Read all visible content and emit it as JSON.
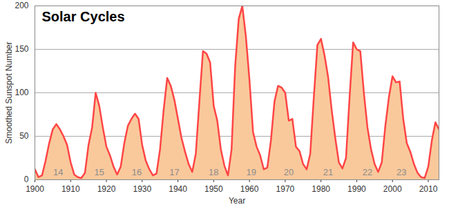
{
  "chart_data": {
    "type": "area",
    "title": "Solar Cycles",
    "x_label": "Year",
    "y_label": "Smoothed Sunspot Number",
    "x": [
      1900,
      1901,
      1902,
      1903,
      1904,
      1905,
      1906,
      1907,
      1908,
      1909,
      1910,
      1911,
      1912,
      1913,
      1914,
      1915,
      1916,
      1917,
      1918,
      1919,
      1920,
      1921,
      1922,
      1923,
      1924,
      1925,
      1926,
      1927,
      1928,
      1929,
      1930,
      1931,
      1932,
      1933,
      1934,
      1935,
      1936,
      1937,
      1938,
      1939,
      1940,
      1941,
      1942,
      1943,
      1944,
      1945,
      1946,
      1947,
      1948,
      1949,
      1950,
      1951,
      1952,
      1953,
      1954,
      1955,
      1956,
      1957,
      1958,
      1959,
      1960,
      1961,
      1962,
      1963,
      1964,
      1965,
      1966,
      1967,
      1968,
      1969,
      1970,
      1971,
      1972,
      1973,
      1974,
      1975,
      1976,
      1977,
      1978,
      1979,
      1980,
      1981,
      1982,
      1983,
      1984,
      1985,
      1986,
      1987,
      1988,
      1989,
      1990,
      1991,
      1992,
      1993,
      1994,
      1995,
      1996,
      1997,
      1998,
      1999,
      2000,
      2001,
      2002,
      2003,
      2004,
      2005,
      2006,
      2007,
      2008,
      2009,
      2010,
      2011,
      2012,
      2013
    ],
    "values": [
      12,
      3,
      5,
      22,
      42,
      58,
      64,
      58,
      50,
      40,
      20,
      6,
      3,
      2,
      8,
      40,
      60,
      100,
      85,
      60,
      38,
      28,
      15,
      6,
      15,
      42,
      62,
      70,
      76,
      70,
      40,
      22,
      12,
      5,
      7,
      35,
      80,
      117,
      108,
      92,
      70,
      48,
      32,
      18,
      9,
      30,
      90,
      148,
      145,
      135,
      85,
      68,
      35,
      16,
      5,
      35,
      130,
      185,
      200,
      165,
      115,
      55,
      38,
      28,
      12,
      14,
      45,
      90,
      108,
      106,
      100,
      68,
      70,
      38,
      33,
      18,
      12,
      30,
      95,
      155,
      162,
      143,
      118,
      80,
      48,
      20,
      13,
      25,
      95,
      158,
      150,
      148,
      100,
      60,
      35,
      18,
      9,
      20,
      62,
      95,
      119,
      112,
      113,
      70,
      42,
      32,
      18,
      8,
      3,
      2,
      15,
      45,
      66,
      58
    ],
    "color": "#ff4545",
    "xlim": [
      1900,
      2013
    ],
    "xticks": [
      1900,
      1910,
      1920,
      1930,
      1940,
      1950,
      1960,
      1970,
      1980,
      1990,
      2000,
      2010
    ],
    "ylim": [
      0,
      200
    ],
    "yticks": [
      0,
      50,
      100,
      150,
      200
    ],
    "grid": true,
    "annotations": [
      {
        "text": "14",
        "x": 1906.5,
        "y": 5
      },
      {
        "text": "15",
        "x": 1918,
        "y": 5
      },
      {
        "text": "16",
        "x": 1928.5,
        "y": 5
      },
      {
        "text": "17",
        "x": 1939,
        "y": 5
      },
      {
        "text": "18",
        "x": 1950,
        "y": 5
      },
      {
        "text": "19",
        "x": 1960.5,
        "y": 5
      },
      {
        "text": "20",
        "x": 1971,
        "y": 5
      },
      {
        "text": "21",
        "x": 1982,
        "y": 5
      },
      {
        "text": "22",
        "x": 1993,
        "y": 5
      },
      {
        "text": "23",
        "x": 2002.5,
        "y": 5
      }
    ]
  }
}
